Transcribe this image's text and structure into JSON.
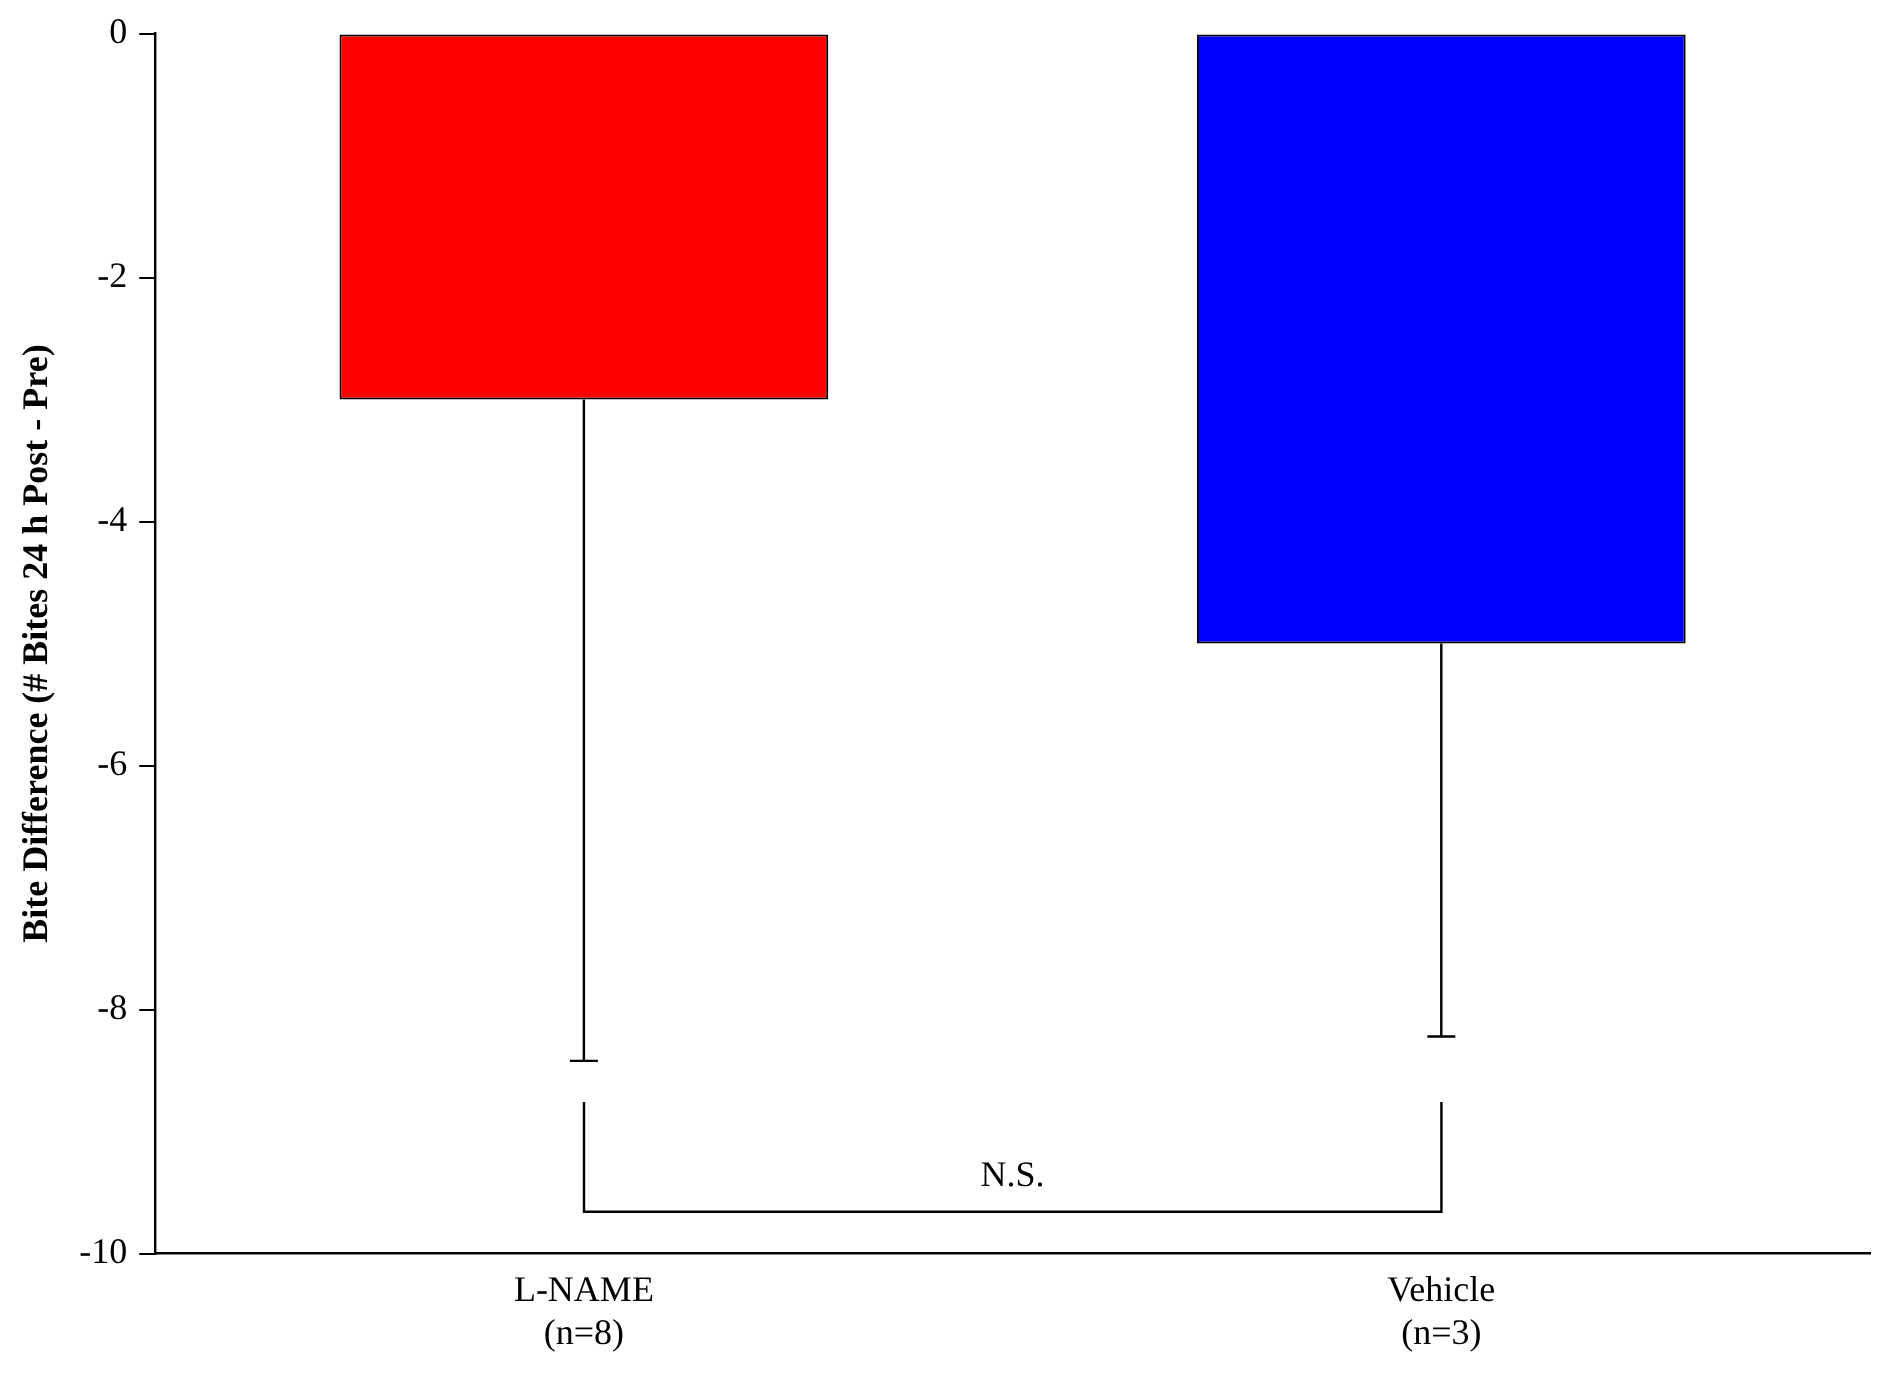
{
  "chart_data": {
    "type": "bar",
    "ylabel": "Bite Difference (# Bites 24 h Post - Pre)",
    "categories": [
      "L-NAME\n(n=8)",
      "Vehicle\n(n=3)"
    ],
    "values": [
      -3,
      -5
    ],
    "colors": [
      "#ff0000",
      "#0000ff"
    ],
    "errors": [
      [
        -8.42,
        -3
      ],
      [
        -8.22,
        -5
      ]
    ],
    "ylim": [
      -10,
      0
    ],
    "yticks": [
      -10,
      -8,
      -6,
      -4,
      -2,
      0
    ],
    "grid": false,
    "legend": false,
    "annotations": [
      "N.S."
    ]
  }
}
